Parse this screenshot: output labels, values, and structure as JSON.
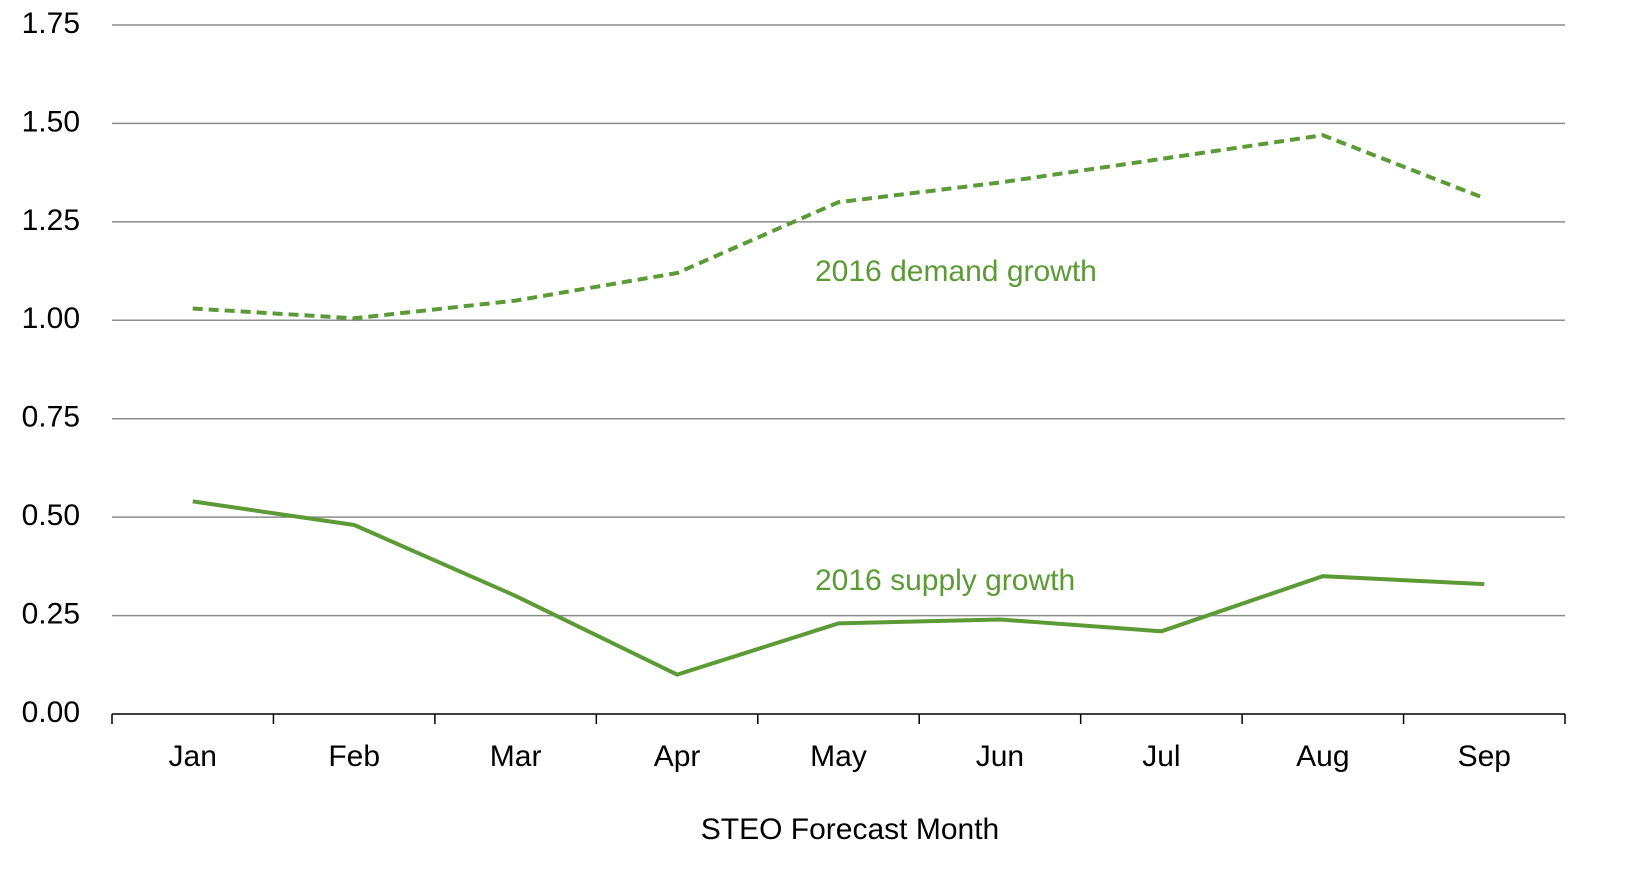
{
  "chart_data": {
    "type": "line",
    "categories": [
      "Jan",
      "Feb",
      "Mar",
      "Apr",
      "May",
      "Jun",
      "Jul",
      "Aug",
      "Sep"
    ],
    "series": [
      {
        "name": "2016 demand growth",
        "color": "#5b9a35",
        "style": "dashed",
        "values": [
          1.03,
          1.005,
          1.05,
          1.12,
          1.3,
          1.35,
          1.41,
          1.47,
          1.31
        ]
      },
      {
        "name": "2016 supply growth",
        "color": "#5b9a35",
        "style": "solid",
        "values": [
          0.54,
          0.48,
          0.3,
          0.1,
          0.23,
          0.24,
          0.21,
          0.35,
          0.33
        ]
      }
    ],
    "x_label": "STEO Forecast Month",
    "ylim": [
      0,
      1.75
    ],
    "yticks": [
      {
        "value": 0,
        "label": "0.00"
      },
      {
        "value": 0.25,
        "label": "0.25"
      },
      {
        "value": 0.5,
        "label": "0.50"
      },
      {
        "value": 0.75,
        "label": "0.75"
      },
      {
        "value": 1,
        "label": "1.00"
      },
      {
        "value": 1.25,
        "label": "1.25"
      },
      {
        "value": 1.5,
        "label": "1.50"
      },
      {
        "value": 1.75,
        "label": "1.75"
      }
    ],
    "grid": true
  }
}
